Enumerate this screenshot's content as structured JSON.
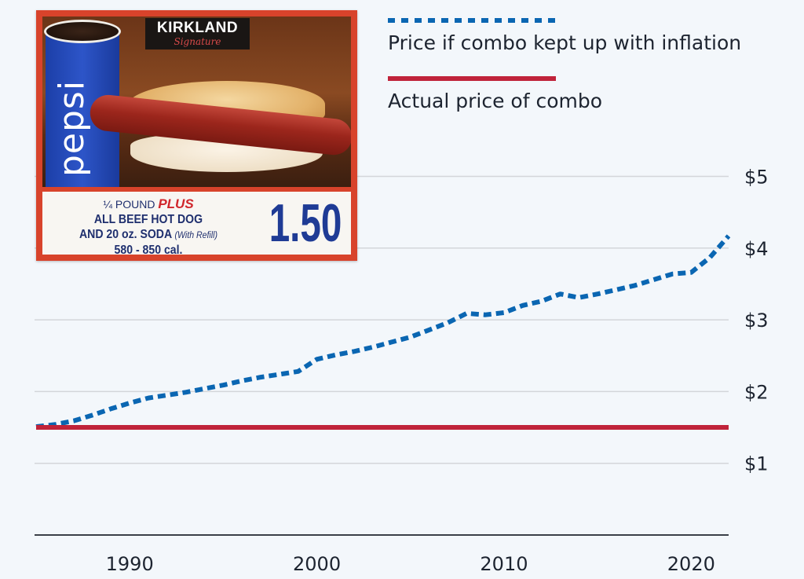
{
  "chart_data": {
    "type": "line",
    "title": "",
    "xlabel": "",
    "ylabel": "",
    "x": [
      1985,
      1986,
      1987,
      1988,
      1989,
      1990,
      1991,
      1992,
      1993,
      1994,
      1995,
      1996,
      1997,
      1998,
      1999,
      2000,
      2001,
      2002,
      2003,
      2004,
      2005,
      2006,
      2007,
      2008,
      2009,
      2010,
      2011,
      2012,
      2013,
      2014,
      2015,
      2016,
      2017,
      2018,
      2019,
      2020,
      2021,
      2022
    ],
    "series": [
      {
        "name": "Price if combo kept up with inflation",
        "style": "dotted",
        "color": "#0a66b2",
        "values": [
          1.51,
          1.54,
          1.59,
          1.67,
          1.76,
          1.84,
          1.91,
          1.95,
          1.99,
          2.04,
          2.09,
          2.15,
          2.2,
          2.24,
          2.28,
          2.45,
          2.51,
          2.56,
          2.62,
          2.69,
          2.76,
          2.86,
          2.96,
          3.09,
          3.07,
          3.1,
          3.2,
          3.26,
          3.36,
          3.31,
          3.36,
          3.42,
          3.48,
          3.56,
          3.64,
          3.66,
          3.87,
          4.17
        ]
      },
      {
        "name": "Actual price of combo",
        "style": "solid",
        "color": "#c0233a",
        "values": [
          1.5,
          1.5,
          1.5,
          1.5,
          1.5,
          1.5,
          1.5,
          1.5,
          1.5,
          1.5,
          1.5,
          1.5,
          1.5,
          1.5,
          1.5,
          1.5,
          1.5,
          1.5,
          1.5,
          1.5,
          1.5,
          1.5,
          1.5,
          1.5,
          1.5,
          1.5,
          1.5,
          1.5,
          1.5,
          1.5,
          1.5,
          1.5,
          1.5,
          1.5,
          1.5,
          1.5,
          1.5,
          1.5
        ]
      }
    ],
    "xlim": [
      1985,
      2022
    ],
    "ylim": [
      0,
      5.5
    ],
    "x_ticks": [
      1990,
      2000,
      2010,
      2020
    ],
    "x_tick_labels": [
      "1990",
      "2000",
      "2010",
      "2020"
    ],
    "y_ticks": [
      1,
      2,
      3,
      4,
      5
    ],
    "y_tick_labels": [
      "$1",
      "$2",
      "$3",
      "$4",
      "$5"
    ],
    "y_axis_side": "right",
    "grid": true,
    "legend": {
      "placement": "top-right",
      "entries": [
        "Price if combo kept up with inflation",
        "Actual price of combo"
      ]
    }
  },
  "illustration": {
    "brand_badge": "KIRKLAND",
    "brand_badge_sub": "Signature",
    "cup_brand": "pepsi",
    "line1_prefix": "¼ POUND",
    "line1_emphasis": "PLUS",
    "line2": "ALL BEEF HOT DOG",
    "line3": "AND 20 oz. SODA",
    "line3_note": "(With Refill)",
    "line4": "580 - 850 cal.",
    "price": "1.50"
  },
  "colors": {
    "background": "#f3f7fb",
    "inflation_line": "#0a66b2",
    "actual_line": "#c0233a",
    "gridline": "#d3d6da",
    "axis": "#3a4048",
    "text": "#1d2430"
  }
}
